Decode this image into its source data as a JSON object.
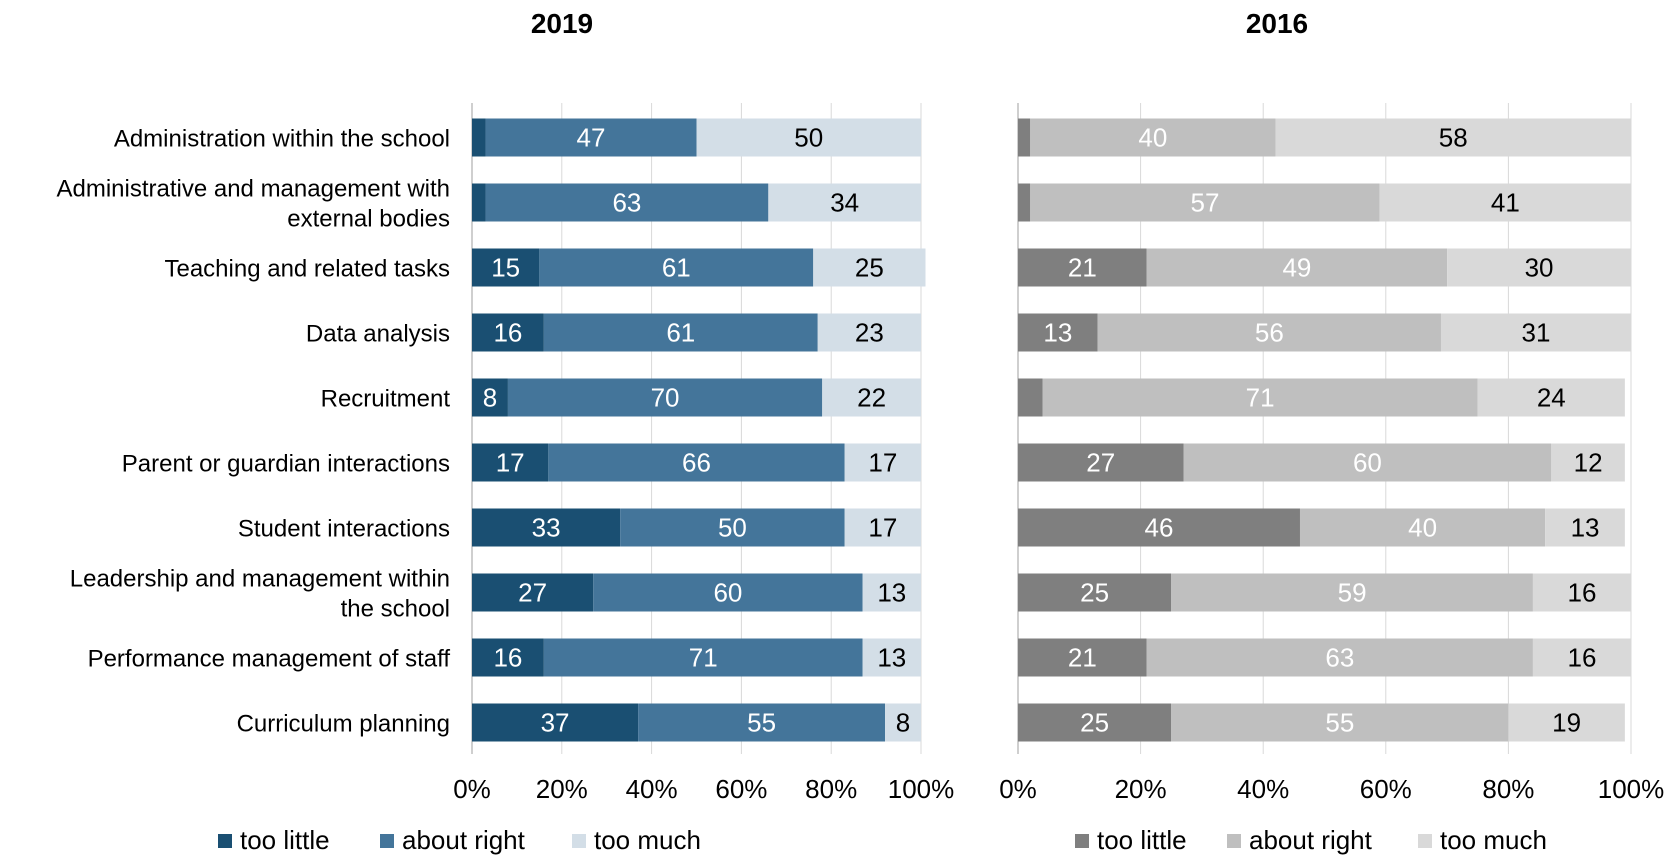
{
  "chart_data": [
    {
      "type": "bar",
      "orientation": "horizontal",
      "stacked": "percent",
      "title": "2019",
      "xlabel": "",
      "ylabel": "",
      "xlim": [
        0,
        100
      ],
      "x_ticks": [
        "0%",
        "20%",
        "40%",
        "60%",
        "80%",
        "100%"
      ],
      "grid": "vertical",
      "legend_position": "bottom",
      "categories": [
        "Administration within the school",
        "Administrative and management with external bodies",
        "Teaching and related tasks",
        "Data analysis",
        "Recruitment",
        "Parent or guardian interactions",
        "Student interactions",
        "Leadership and management within the school",
        "Performance management of staff",
        "Curriculum planning"
      ],
      "category_lines": [
        [
          "Administration within the school"
        ],
        [
          "Administrative and management with",
          "external bodies"
        ],
        [
          "Teaching and related tasks"
        ],
        [
          "Data analysis"
        ],
        [
          "Recruitment"
        ],
        [
          "Parent or guardian interactions"
        ],
        [
          "Student interactions"
        ],
        [
          "Leadership and management within",
          "the school"
        ],
        [
          "Performance management of staff"
        ],
        [
          "Curriculum planning"
        ]
      ],
      "series": [
        {
          "name": "too little",
          "color": "#1a4f72",
          "values": [
            3,
            3,
            15,
            16,
            8,
            17,
            33,
            27,
            16,
            37
          ],
          "labels": [
            "",
            "",
            "15",
            "16",
            "8",
            "17",
            "33",
            "27",
            "16",
            "37"
          ]
        },
        {
          "name": "about right",
          "color": "#44759a",
          "values": [
            47,
            63,
            61,
            61,
            70,
            66,
            50,
            60,
            71,
            55
          ],
          "labels": [
            "47",
            "63",
            "61",
            "61",
            "70",
            "66",
            "50",
            "60",
            "71",
            "55"
          ]
        },
        {
          "name": "too much",
          "color": "#d3dee7",
          "values": [
            50,
            34,
            25,
            23,
            22,
            17,
            17,
            13,
            13,
            8
          ],
          "labels": [
            "50",
            "34",
            "25",
            "23",
            "22",
            "17",
            "17",
            "13",
            "13",
            "8"
          ]
        }
      ]
    },
    {
      "type": "bar",
      "orientation": "horizontal",
      "stacked": "percent",
      "title": "2016",
      "xlabel": "",
      "ylabel": "",
      "xlim": [
        0,
        100
      ],
      "x_ticks": [
        "0%",
        "20%",
        "40%",
        "60%",
        "80%",
        "100%"
      ],
      "grid": "vertical",
      "legend_position": "bottom",
      "categories": [
        "Administration within the school",
        "Administrative and management with external bodies",
        "Teaching and related tasks",
        "Data analysis",
        "Recruitment",
        "Parent or guardian interactions",
        "Student interactions",
        "Leadership and management within the school",
        "Performance management of staff",
        "Curriculum planning"
      ],
      "series": [
        {
          "name": "too little",
          "color": "#7f7f7f",
          "values": [
            2,
            2,
            21,
            13,
            4,
            27,
            46,
            25,
            21,
            25
          ],
          "labels": [
            "",
            "",
            "21",
            "13",
            "",
            "27",
            "46",
            "25",
            "21",
            "25"
          ]
        },
        {
          "name": "about right",
          "color": "#bfbfbf",
          "values": [
            40,
            57,
            49,
            56,
            71,
            60,
            40,
            59,
            63,
            55
          ],
          "labels": [
            "40",
            "57",
            "49",
            "56",
            "71",
            "60",
            "40",
            "59",
            "63",
            "55"
          ]
        },
        {
          "name": "too much",
          "color": "#d9d9d9",
          "values": [
            58,
            41,
            30,
            31,
            24,
            12,
            13,
            16,
            16,
            19
          ],
          "labels": [
            "58",
            "41",
            "30",
            "31",
            "24",
            "12",
            "13",
            "16",
            "16",
            "19"
          ]
        }
      ]
    }
  ]
}
